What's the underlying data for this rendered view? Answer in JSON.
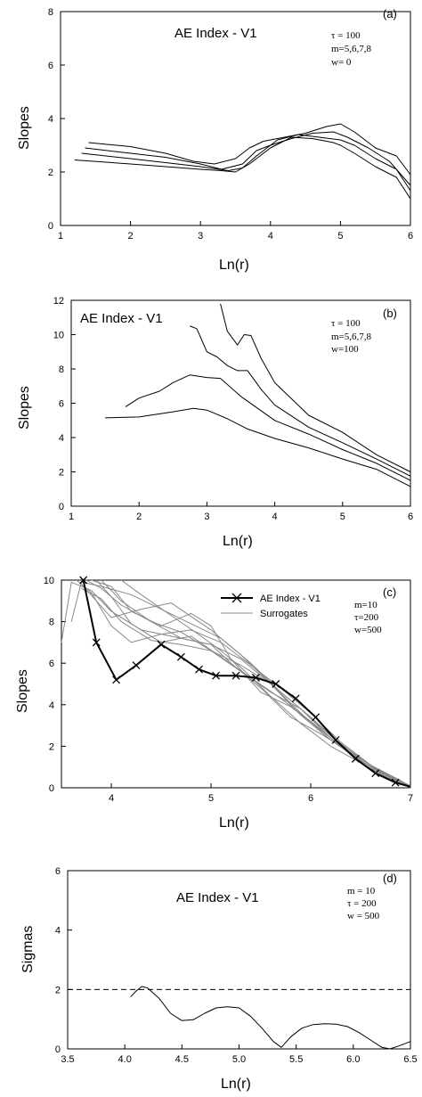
{
  "chart_data": [
    {
      "type": "line",
      "panel": "(a)",
      "title": "AE  Index - V1",
      "params": [
        "τ = 100",
        "m=5,6,7,8",
        "w= 0"
      ],
      "xlabel": "Ln(r)",
      "ylabel": "Slopes",
      "xlim": [
        1,
        6
      ],
      "ylim": [
        0,
        8
      ],
      "xticks": [
        1,
        2,
        3,
        4,
        5,
        6
      ],
      "yticks": [
        0,
        2,
        4,
        6,
        8
      ],
      "series": [
        {
          "x": [
            1.2,
            2.0,
            2.5,
            3.0,
            3.3,
            3.5,
            3.7,
            4.0,
            4.3,
            4.6,
            4.9,
            5.0,
            5.2,
            5.5,
            5.8,
            6.0
          ],
          "y": [
            2.45,
            2.3,
            2.2,
            2.1,
            2.05,
            2.0,
            2.3,
            2.9,
            3.3,
            3.25,
            3.1,
            3.0,
            2.7,
            2.2,
            1.8,
            1.0
          ]
        },
        {
          "x": [
            1.3,
            2.0,
            2.5,
            3.0,
            3.4,
            3.6,
            3.8,
            4.1,
            4.4,
            4.7,
            5.0,
            5.2,
            5.5,
            5.8,
            6.0
          ],
          "y": [
            2.7,
            2.5,
            2.35,
            2.2,
            2.05,
            2.15,
            2.6,
            3.2,
            3.4,
            3.3,
            3.2,
            3.0,
            2.5,
            2.1,
            1.3
          ]
        },
        {
          "x": [
            1.35,
            2.0,
            2.5,
            3.0,
            3.3,
            3.6,
            3.8,
            4.0,
            4.3,
            4.6,
            4.9,
            5.1,
            5.4,
            5.7,
            6.0
          ],
          "y": [
            2.9,
            2.7,
            2.55,
            2.3,
            2.1,
            2.3,
            2.8,
            3.0,
            3.25,
            3.45,
            3.5,
            3.3,
            2.9,
            2.4,
            1.5
          ]
        },
        {
          "x": [
            1.4,
            2.0,
            2.5,
            2.9,
            3.2,
            3.5,
            3.7,
            3.9,
            4.2,
            4.5,
            4.8,
            5.0,
            5.2,
            5.5,
            5.8,
            6.0
          ],
          "y": [
            3.1,
            2.95,
            2.7,
            2.4,
            2.3,
            2.5,
            2.9,
            3.15,
            3.3,
            3.45,
            3.7,
            3.8,
            3.5,
            2.9,
            2.6,
            1.9
          ]
        }
      ]
    },
    {
      "type": "line",
      "panel": "(b)",
      "title": "AE  Index - V1",
      "params": [
        "τ = 100",
        "m=5,6,7,8",
        "w=100"
      ],
      "xlabel": "Ln(r)",
      "ylabel": "Slopes",
      "xlim": [
        1,
        6
      ],
      "ylim": [
        0,
        12
      ],
      "xticks": [
        1,
        2,
        3,
        4,
        5,
        6
      ],
      "yticks": [
        0,
        2,
        4,
        6,
        8,
        10,
        12
      ],
      "series": [
        {
          "x": [
            1.5,
            2.0,
            2.5,
            2.8,
            3.0,
            3.3,
            3.6,
            4.0,
            4.5,
            5.0,
            5.5,
            6.0
          ],
          "y": [
            5.15,
            5.2,
            5.5,
            5.7,
            5.6,
            5.1,
            4.5,
            3.95,
            3.4,
            2.75,
            2.15,
            1.15
          ]
        },
        {
          "x": [
            1.8,
            2.0,
            2.3,
            2.5,
            2.75,
            3.0,
            3.2,
            3.5,
            4.0,
            4.5,
            5.0,
            5.5,
            6.0
          ],
          "y": [
            5.8,
            6.3,
            6.7,
            7.2,
            7.65,
            7.5,
            7.45,
            6.4,
            5.0,
            4.2,
            3.3,
            2.5,
            1.5
          ]
        },
        {
          "x": [
            2.75,
            2.85,
            3.0,
            3.15,
            3.3,
            3.45,
            3.6,
            3.8,
            4.0,
            4.5,
            5.0,
            5.5,
            6.0
          ],
          "y": [
            10.5,
            10.35,
            9.0,
            8.7,
            8.2,
            7.9,
            7.9,
            6.8,
            5.9,
            4.6,
            3.7,
            2.75,
            1.75
          ]
        },
        {
          "x": [
            3.2,
            3.3,
            3.45,
            3.55,
            3.65,
            3.8,
            4.0,
            4.5,
            5.0,
            5.5,
            6.0
          ],
          "y": [
            11.8,
            10.2,
            9.4,
            10.0,
            9.95,
            8.6,
            7.2,
            5.3,
            4.3,
            3.0,
            2.0
          ]
        }
      ]
    },
    {
      "type": "line",
      "panel": "(c)",
      "params": [
        "m=10",
        "τ=200",
        "w=500"
      ],
      "xlabel": "Ln(r)",
      "ylabel": "Slopes",
      "xlim": [
        3.5,
        7
      ],
      "ylim": [
        0,
        10
      ],
      "xticks": [
        4,
        5,
        6,
        7
      ],
      "yticks": [
        0,
        2,
        4,
        6,
        8,
        10
      ],
      "legend": "top-right",
      "series": [
        {
          "name": "AE Index - V1",
          "marker": "x",
          "x": [
            3.72,
            3.85,
            4.05,
            4.25,
            4.5,
            4.7,
            4.88,
            5.05,
            5.25,
            5.45,
            5.65,
            5.85,
            6.05,
            6.25,
            6.45,
            6.65,
            6.85,
            7.0
          ],
          "y": [
            10.0,
            7.0,
            5.2,
            5.9,
            6.9,
            6.3,
            5.7,
            5.4,
            5.4,
            5.3,
            5.0,
            4.3,
            3.4,
            2.3,
            1.4,
            0.7,
            0.25,
            0.05
          ]
        },
        {
          "name": "Surrogates",
          "x": [
            3.5,
            3.6,
            3.8,
            4.0,
            4.3,
            4.7,
            5.0,
            5.3,
            5.6,
            5.9,
            6.2,
            6.5,
            6.8,
            7.0
          ],
          "y": [
            7.0,
            9.9,
            9.5,
            8.5,
            7.6,
            7.2,
            6.9,
            6.2,
            5.0,
            3.8,
            2.4,
            1.3,
            0.5,
            0.0
          ]
        },
        {
          "x": [
            3.65,
            3.8,
            4.0,
            4.2,
            4.5,
            4.8,
            5.1,
            5.4,
            5.7,
            6.0,
            6.3,
            6.6,
            6.9,
            7.0
          ],
          "y": [
            10.0,
            9.4,
            7.8,
            7.0,
            7.4,
            7.6,
            7.0,
            5.9,
            4.8,
            3.6,
            2.2,
            1.1,
            0.3,
            0.05
          ]
        },
        {
          "x": [
            3.7,
            3.85,
            4.0,
            4.3,
            4.6,
            5.0,
            5.3,
            5.6,
            5.9,
            6.2,
            6.5,
            6.8,
            7.0
          ],
          "y": [
            9.8,
            9.0,
            8.2,
            8.6,
            8.9,
            7.6,
            6.4,
            5.0,
            3.5,
            2.3,
            1.3,
            0.5,
            0.05
          ]
        },
        {
          "x": [
            3.75,
            3.9,
            4.1,
            4.4,
            4.7,
            5.0,
            5.3,
            5.6,
            5.9,
            6.2,
            6.5,
            6.8,
            7.0
          ],
          "y": [
            10.0,
            9.6,
            8.8,
            8.0,
            7.5,
            6.6,
            5.6,
            4.6,
            3.8,
            2.5,
            1.4,
            0.5,
            0.1
          ]
        },
        {
          "x": [
            3.8,
            4.0,
            4.2,
            4.5,
            4.8,
            5.0,
            5.2,
            5.5,
            5.8,
            6.1,
            6.4,
            6.7,
            7.0
          ],
          "y": [
            10.0,
            9.7,
            8.5,
            7.8,
            8.4,
            7.8,
            6.2,
            4.6,
            3.9,
            2.8,
            1.6,
            0.7,
            0.1
          ]
        },
        {
          "x": [
            3.6,
            3.7,
            3.9,
            4.2,
            4.5,
            4.8,
            5.1,
            5.4,
            5.7,
            6.0,
            6.3,
            6.6,
            6.9,
            7.0
          ],
          "y": [
            8.0,
            9.9,
            9.7,
            9.3,
            8.6,
            7.9,
            7.2,
            6.0,
            4.6,
            3.4,
            2.1,
            1.1,
            0.35,
            0.05
          ]
        },
        {
          "x": [
            3.9,
            4.1,
            4.4,
            4.7,
            5.0,
            5.2,
            5.5,
            5.8,
            6.1,
            6.4,
            6.7,
            7.0
          ],
          "y": [
            10.0,
            9.0,
            8.0,
            7.2,
            6.9,
            6.0,
            4.8,
            3.4,
            2.6,
            1.7,
            0.8,
            0.1
          ]
        },
        {
          "x": [
            3.85,
            4.0,
            4.2,
            4.5,
            4.8,
            5.1,
            5.4,
            5.7,
            6.0,
            6.3,
            6.6,
            6.9,
            7.0
          ],
          "y": [
            10.0,
            9.2,
            7.9,
            7.0,
            7.3,
            6.3,
            5.3,
            4.3,
            3.2,
            2.0,
            1.0,
            0.3,
            0.05
          ]
        },
        {
          "x": [
            4.1,
            4.3,
            4.6,
            4.9,
            5.1,
            5.3,
            5.6,
            5.9,
            6.2,
            6.5,
            6.8,
            7.0
          ],
          "y": [
            10.0,
            9.3,
            8.3,
            7.3,
            6.6,
            5.8,
            4.4,
            3.1,
            2.0,
            1.2,
            0.4,
            0.05
          ]
        },
        {
          "x": [
            3.7,
            3.9,
            4.1,
            4.4,
            4.7,
            5.0,
            5.3,
            5.6,
            5.9,
            6.2,
            6.5,
            6.8,
            7.0
          ],
          "y": [
            9.6,
            9.1,
            8.0,
            7.1,
            6.9,
            6.6,
            5.9,
            5.0,
            3.6,
            2.3,
            1.3,
            0.45,
            0.05
          ]
        }
      ]
    },
    {
      "type": "line",
      "panel": "(d)",
      "title": "AE  Index - V1",
      "params": [
        "m = 10",
        "τ = 200",
        "w = 500"
      ],
      "xlabel": "Ln(r)",
      "ylabel": "Sigmas",
      "xlim": [
        3.5,
        6.5
      ],
      "ylim": [
        0,
        6
      ],
      "xticks": [
        "3.5",
        "4.0",
        "4.5",
        "5.0",
        "5.5",
        "6.0",
        "6.5"
      ],
      "yticks": [
        0,
        2,
        4,
        6
      ],
      "reference_line": 2,
      "series": [
        {
          "x": [
            4.05,
            4.1,
            4.15,
            4.2,
            4.3,
            4.4,
            4.5,
            4.6,
            4.7,
            4.8,
            4.9,
            5.0,
            5.1,
            5.2,
            5.3,
            5.37,
            5.45,
            5.55,
            5.65,
            5.75,
            5.85,
            5.95,
            6.05,
            6.15,
            6.25,
            6.32,
            6.4,
            6.5
          ],
          "y": [
            1.75,
            1.95,
            2.1,
            2.05,
            1.7,
            1.2,
            0.95,
            0.98,
            1.2,
            1.38,
            1.42,
            1.38,
            1.1,
            0.7,
            0.25,
            0.05,
            0.4,
            0.7,
            0.82,
            0.85,
            0.83,
            0.75,
            0.55,
            0.3,
            0.05,
            0.0,
            0.1,
            0.25
          ]
        }
      ]
    }
  ]
}
